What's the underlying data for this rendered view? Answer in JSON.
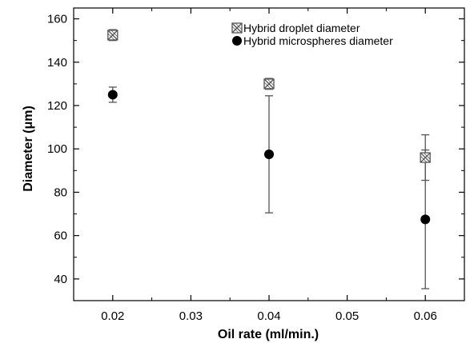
{
  "chart_data": {
    "type": "scatter",
    "title": "",
    "xlabel": "Oil rate (ml/min.)",
    "ylabel": "Diameter (μm)",
    "xlim": [
      0.015,
      0.065
    ],
    "ylim": [
      30,
      165
    ],
    "x_ticks": [
      0.02,
      0.03,
      0.04,
      0.05,
      0.06
    ],
    "x_tick_labels": [
      "0.02",
      "0.03",
      "0.04",
      "0.05",
      "0.06"
    ],
    "y_ticks": [
      40,
      60,
      80,
      100,
      120,
      140,
      160
    ],
    "y_tick_labels": [
      "40",
      "60",
      "80",
      "100",
      "120",
      "140",
      "160"
    ],
    "legend_position": "top-right",
    "series": [
      {
        "name": "Hybrid droplet diameter",
        "marker": "crossed-square",
        "color": "#555555",
        "points": [
          {
            "x": 0.02,
            "y": 152.5,
            "err_low": 150.0,
            "err_high": 155.0
          },
          {
            "x": 0.04,
            "y": 130.0,
            "err_low": 127.5,
            "err_high": 132.5
          },
          {
            "x": 0.06,
            "y": 96.0,
            "err_low": 85.5,
            "err_high": 106.5
          }
        ]
      },
      {
        "name": "Hybrid microspheres diameter",
        "marker": "filled-circle",
        "color": "#000000",
        "points": [
          {
            "x": 0.02,
            "y": 125.0,
            "err_low": 121.5,
            "err_high": 128.5
          },
          {
            "x": 0.04,
            "y": 97.5,
            "err_low": 70.5,
            "err_high": 124.5
          },
          {
            "x": 0.06,
            "y": 67.5,
            "err_low": 35.5,
            "err_high": 99.5
          }
        ]
      }
    ]
  }
}
